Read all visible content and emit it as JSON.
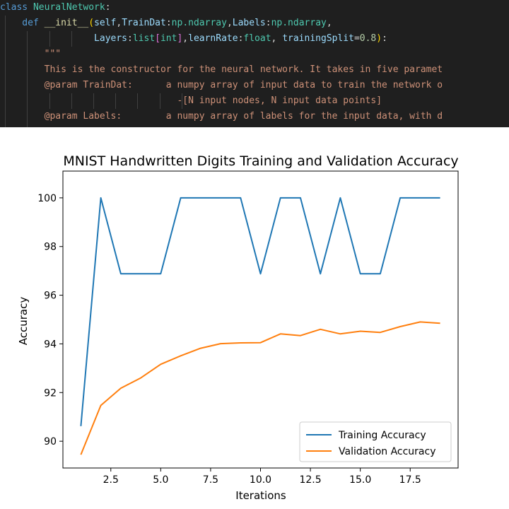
{
  "code": {
    "lines": [
      [
        {
          "t": "class ",
          "c": "kw"
        },
        {
          "t": "NeuralNetwork",
          "c": "cls"
        },
        {
          "t": ":",
          "c": "punc"
        }
      ],
      [
        {
          "t": "    def ",
          "c": "kw"
        },
        {
          "t": "__init__",
          "c": "fn"
        },
        {
          "t": "(",
          "c": "br1"
        },
        {
          "t": "self",
          "c": "par"
        },
        {
          "t": ",",
          "c": "punc"
        },
        {
          "t": "TrainDat",
          "c": "par"
        },
        {
          "t": ":",
          "c": "punc"
        },
        {
          "t": "np.ndarray",
          "c": "ty"
        },
        {
          "t": ",",
          "c": "punc"
        },
        {
          "t": "Labels",
          "c": "par"
        },
        {
          "t": ":",
          "c": "punc"
        },
        {
          "t": "np.ndarray",
          "c": "ty"
        },
        {
          "t": ",",
          "c": "punc"
        }
      ],
      [
        {
          "t": "                 Layers",
          "c": "par"
        },
        {
          "t": ":",
          "c": "punc"
        },
        {
          "t": "list",
          "c": "ty"
        },
        {
          "t": "[",
          "c": "br2"
        },
        {
          "t": "int",
          "c": "ty"
        },
        {
          "t": "]",
          "c": "br2"
        },
        {
          "t": ",",
          "c": "punc"
        },
        {
          "t": "learnRate",
          "c": "par"
        },
        {
          "t": ":",
          "c": "punc"
        },
        {
          "t": "float",
          "c": "ty"
        },
        {
          "t": ", ",
          "c": "punc"
        },
        {
          "t": "trainingSplit",
          "c": "par"
        },
        {
          "t": "=",
          "c": "punc"
        },
        {
          "t": "0.8",
          "c": "num"
        },
        {
          "t": ")",
          "c": "br1"
        },
        {
          "t": ":",
          "c": "punc"
        }
      ],
      [
        {
          "t": "        \"\"\"",
          "c": "str"
        }
      ],
      [
        {
          "t": "        This is the constructor for the neural network. It takes in five paramet",
          "c": "str"
        }
      ],
      [
        {
          "t": "        @param TrainDat:      a numpy array of input data to train the network o",
          "c": "str"
        }
      ],
      [
        {
          "t": "                                -[N input nodes, N input data points]",
          "c": "str"
        }
      ],
      [
        {
          "t": "        @param Labels:        a numpy array of labels for the input data, with d",
          "c": "str"
        }
      ]
    ]
  },
  "chart_data": {
    "type": "line",
    "title": "MNIST Handwritten Digits Training and Validation Accuracy",
    "xlabel": "Iterations",
    "ylabel": "Accuracy",
    "xlim": [
      0.1,
      19.9
    ],
    "ylim": [
      88.9,
      101.1
    ],
    "xticks": [
      2.5,
      5.0,
      7.5,
      10.0,
      12.5,
      15.0,
      17.5
    ],
    "xtick_labels": [
      "2.5",
      "5.0",
      "7.5",
      "10.0",
      "12.5",
      "15.0",
      "17.5"
    ],
    "yticks": [
      90,
      92,
      94,
      96,
      98,
      100
    ],
    "ytick_labels": [
      "90",
      "92",
      "94",
      "96",
      "98",
      "100"
    ],
    "grid": false,
    "legend": "lower-right",
    "x": [
      1,
      2,
      3,
      4,
      5,
      6,
      7,
      8,
      9,
      10,
      11,
      12,
      13,
      14,
      15,
      16,
      17,
      18,
      19
    ],
    "series": [
      {
        "name": "Training Accuracy",
        "color": "#1f77b4",
        "values": [
          90.62,
          100,
          96.88,
          96.88,
          96.88,
          100,
          100,
          100,
          100,
          96.88,
          100,
          100,
          96.88,
          100,
          96.88,
          96.88,
          100,
          100,
          100
        ]
      },
      {
        "name": "Validation Accuracy",
        "color": "#ff7f0e",
        "values": [
          89.45,
          91.47,
          92.18,
          92.6,
          93.16,
          93.51,
          93.82,
          94.01,
          94.04,
          94.05,
          94.41,
          94.34,
          94.6,
          94.41,
          94.52,
          94.47,
          94.71,
          94.9,
          94.85
        ]
      }
    ]
  }
}
